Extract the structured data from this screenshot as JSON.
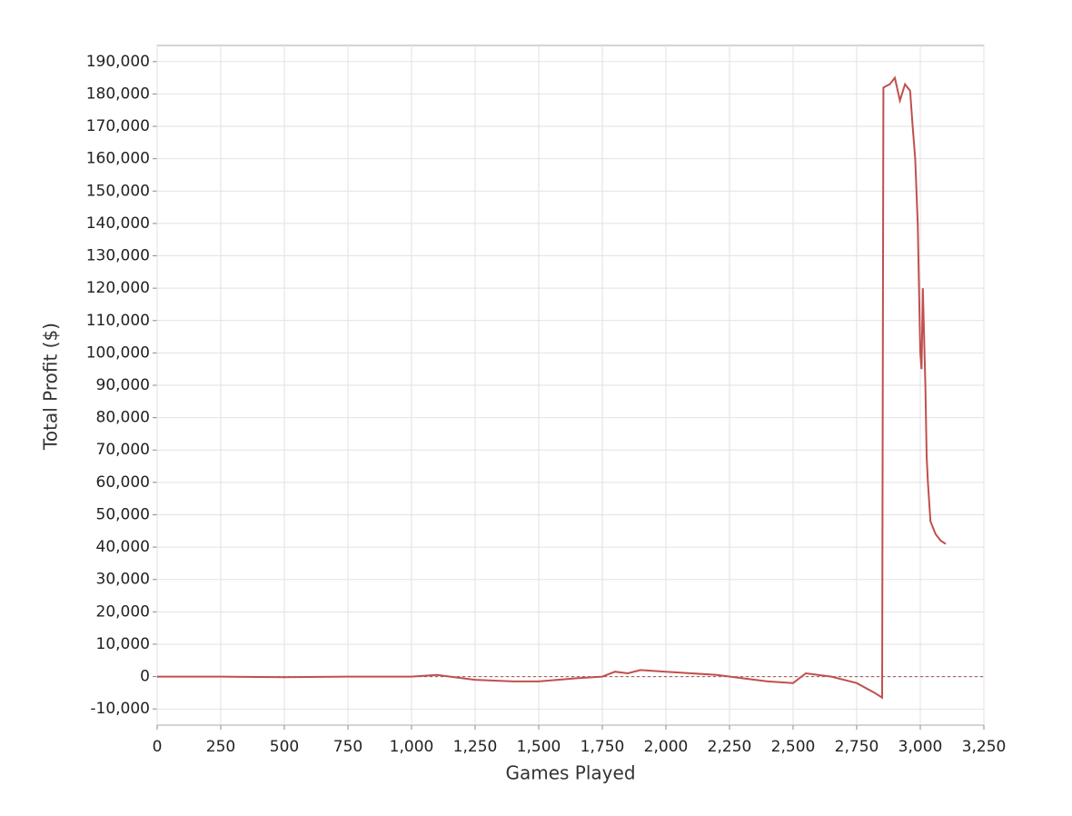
{
  "chart_data": {
    "type": "line",
    "x_label": "Games Played",
    "y_label": "Total Profit ($)",
    "xlim": [
      0,
      3250
    ],
    "ylim": [
      -15000,
      195000
    ],
    "xticks": [
      0,
      250,
      500,
      750,
      {
        "value": 1000,
        "label": "1,000"
      },
      {
        "value": 1250,
        "label": "1,250"
      },
      {
        "value": 1500,
        "label": "1,500"
      },
      {
        "value": 1750,
        "label": "1,750"
      },
      {
        "value": 2000,
        "label": "2,000"
      },
      {
        "value": 2250,
        "label": "2,250"
      },
      {
        "value": 2500,
        "label": "2,500"
      },
      {
        "value": 2750,
        "label": "2,750"
      },
      {
        "value": 3000,
        "label": "3,000"
      },
      {
        "value": 3250,
        "label": "3,250"
      }
    ],
    "yticks": [
      {
        "value": -10000,
        "label": "-10,000"
      },
      0,
      {
        "value": 10000,
        "label": "10,000"
      },
      {
        "value": 20000,
        "label": "20,000"
      },
      {
        "value": 30000,
        "label": "30,000"
      },
      {
        "value": 40000,
        "label": "40,000"
      },
      {
        "value": 50000,
        "label": "50,000"
      },
      {
        "value": 60000,
        "label": "60,000"
      },
      {
        "value": 70000,
        "label": "70,000"
      },
      {
        "value": 80000,
        "label": "80,000"
      },
      {
        "value": 90000,
        "label": "90,000"
      },
      {
        "value": 100000,
        "label": "100,000"
      },
      {
        "value": 110000,
        "label": "110,000"
      },
      {
        "value": 120000,
        "label": "120,000"
      },
      {
        "value": 130000,
        "label": "130,000"
      },
      {
        "value": 140000,
        "label": "140,000"
      },
      {
        "value": 150000,
        "label": "150,000"
      },
      {
        "value": 160000,
        "label": "160,000"
      },
      {
        "value": 170000,
        "label": "170,000"
      },
      {
        "value": 180000,
        "label": "180,000"
      },
      {
        "value": 190000,
        "label": "190,000"
      }
    ],
    "grid": true,
    "zero_line": true,
    "color": "#c0504d",
    "x": [
      0,
      250,
      500,
      750,
      1000,
      1100,
      1250,
      1400,
      1500,
      1650,
      1750,
      1800,
      1850,
      1900,
      2000,
      2100,
      2200,
      2300,
      2400,
      2500,
      2550,
      2650,
      2750,
      2820,
      2850,
      2855,
      2880,
      2900,
      2920,
      2940,
      2960,
      2970,
      2980,
      2990,
      3000,
      3005,
      3010,
      3020,
      3025,
      3030,
      3040,
      3060,
      3080,
      3100
    ],
    "values": [
      0,
      0,
      -200,
      0,
      0,
      500,
      -1000,
      -1500,
      -1500,
      -500,
      0,
      1500,
      1000,
      2000,
      1500,
      1000,
      500,
      -500,
      -1500,
      -2000,
      1000,
      0,
      -2000,
      -5000,
      -6500,
      182000,
      183000,
      185000,
      178000,
      183000,
      181000,
      170000,
      160000,
      140000,
      100000,
      95000,
      120000,
      90000,
      68000,
      60000,
      48000,
      44000,
      42000,
      41000
    ]
  }
}
